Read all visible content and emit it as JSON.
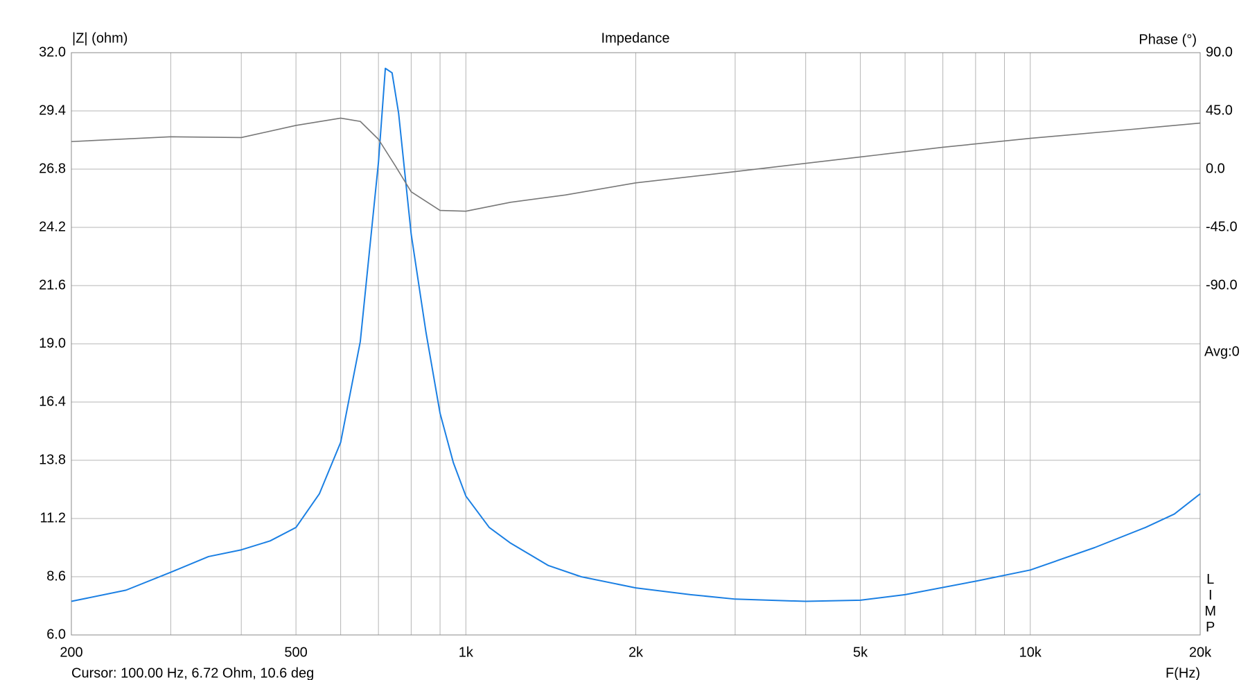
{
  "chart_data": {
    "type": "line",
    "title": "Impedance",
    "ylabel": "|Z| (ohm)",
    "y2label": "Phase (°)",
    "xlabel": "F(Hz)",
    "cursor": "Cursor: 100.00 Hz, 6.72 Ohm, 10.6 deg",
    "avg": "Avg:0",
    "side_label": "LIMP",
    "xscale": "log",
    "grid": true,
    "xlim": [
      200,
      20000
    ],
    "xticks": [
      200,
      500,
      {
        "value": 1000,
        "label": "1k"
      },
      {
        "value": 2000,
        "label": "2k"
      },
      {
        "value": 5000,
        "label": "5k"
      },
      {
        "value": 10000,
        "label": "10k"
      },
      {
        "value": 20000,
        "label": "20k"
      }
    ],
    "xminor": [
      300,
      400,
      600,
      700,
      800,
      900,
      3000,
      4000,
      6000,
      7000,
      8000,
      9000
    ],
    "ylim": [
      6,
      32
    ],
    "yticks": [
      {
        "value": 6,
        "label": "6.0"
      },
      {
        "value": 8.6,
        "label": "8.6"
      },
      {
        "value": 11.2,
        "label": "11.2"
      },
      {
        "value": 13.8,
        "label": "13.8"
      },
      {
        "value": 16.4,
        "label": "16.4"
      },
      {
        "value": 19,
        "label": "19.0"
      },
      {
        "value": 21.6,
        "label": "21.6"
      },
      {
        "value": 24.2,
        "label": "24.2"
      },
      {
        "value": 26.8,
        "label": "26.8"
      },
      {
        "value": 29.4,
        "label": "29.4"
      },
      {
        "value": 32,
        "label": "32.0"
      }
    ],
    "y2lim": [
      -360,
      90
    ],
    "y2ticks": [
      {
        "value": 90,
        "label": "90.0"
      },
      {
        "value": 45,
        "label": "45.0"
      },
      {
        "value": 0,
        "label": "0.0"
      },
      {
        "value": -45,
        "label": "-45.0"
      },
      {
        "value": -90,
        "label": "-90.0"
      }
    ],
    "series": [
      {
        "color": "#1a7fe3",
        "x": [
          200,
          250,
          300,
          350,
          400,
          450,
          500,
          550,
          600,
          650,
          700,
          720,
          740,
          760,
          800,
          850,
          900,
          950,
          1000,
          1100,
          1200,
          1400,
          1600,
          2000,
          2500,
          3000,
          4000,
          5000,
          6000,
          8000,
          10000,
          13000,
          16000,
          18000,
          20000
        ],
        "values": [
          7.5,
          8.0,
          8.8,
          9.5,
          9.8,
          10.2,
          10.8,
          12.3,
          14.6,
          19.1,
          27.1,
          31.3,
          31.1,
          29.3,
          23.9,
          19.5,
          15.9,
          13.7,
          12.2,
          10.8,
          10.1,
          9.1,
          8.6,
          8.1,
          7.8,
          7.6,
          7.5,
          7.55,
          7.8,
          8.4,
          8.9,
          9.9,
          10.8,
          11.4,
          12.3
        ]
      },
      {
        "color": "#777777",
        "axis": "y2",
        "x": [
          200,
          300,
          400,
          500,
          600,
          650,
          700,
          750,
          800,
          900,
          1000,
          1200,
          1500,
          2000,
          3000,
          5000,
          7000,
          10000,
          15000,
          20000
        ],
        "values": [
          21.3,
          25,
          24.4,
          33.8,
          39.4,
          36.9,
          23.1,
          2.5,
          -17.5,
          -31.9,
          -32.5,
          -25.6,
          -20,
          -10.6,
          -1.9,
          9.4,
          16.9,
          23.8,
          30.6,
          35.6
        ]
      }
    ]
  }
}
